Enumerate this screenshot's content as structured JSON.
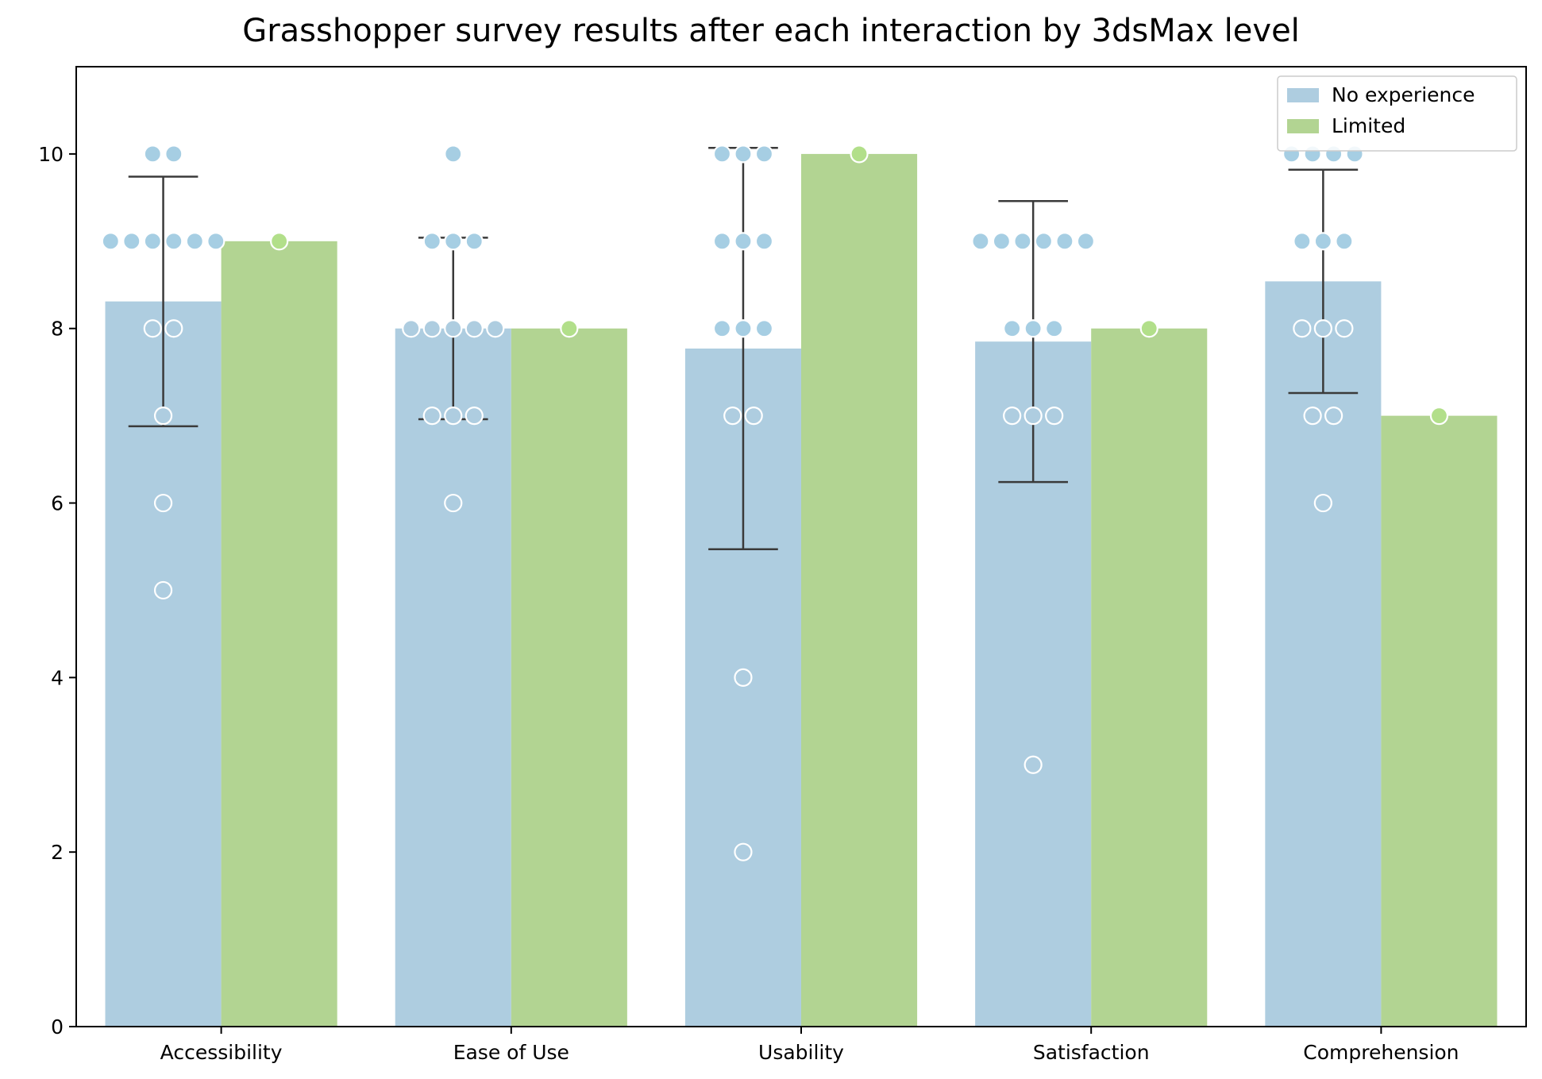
{
  "chart_data": {
    "type": "bar",
    "title": "Grasshopper survey results after each interaction by 3dsMax level",
    "xlabel": "",
    "ylabel": "",
    "ylim": [
      0,
      11
    ],
    "yticks": [
      0,
      2,
      4,
      6,
      8,
      10
    ],
    "categories": [
      "Accessibility",
      "Ease of Use",
      "Usability",
      "Satisfaction",
      "Comprehension"
    ],
    "legend_position": "top-right",
    "grid": false,
    "series": [
      {
        "name": "No experience",
        "color": "#aecde0",
        "point_color": "#a6cee3",
        "values": [
          8.31,
          8.0,
          7.77,
          7.85,
          8.54
        ],
        "error_low": [
          6.88,
          6.96,
          5.47,
          6.24,
          7.26
        ],
        "error_high": [
          9.74,
          9.04,
          10.07,
          9.46,
          9.82
        ],
        "points": [
          [
            10,
            10,
            9,
            9,
            9,
            9,
            9,
            9,
            8,
            8,
            7,
            6,
            5
          ],
          [
            10,
            9,
            9,
            9,
            8,
            8,
            8,
            8,
            8,
            7,
            7,
            7,
            6
          ],
          [
            10,
            10,
            10,
            9,
            9,
            9,
            8,
            8,
            8,
            7,
            7,
            4,
            2
          ],
          [
            9,
            9,
            9,
            9,
            9,
            9,
            8,
            8,
            8,
            7,
            7,
            7,
            3
          ],
          [
            10,
            10,
            10,
            10,
            9,
            9,
            9,
            8,
            8,
            8,
            7,
            7,
            6
          ]
        ]
      },
      {
        "name": "Limited",
        "color": "#b2d492",
        "point_color": "#b2df8a",
        "values": [
          9,
          8,
          10,
          8,
          7
        ],
        "points": [
          [
            9
          ],
          [
            8
          ],
          [
            10
          ],
          [
            8
          ],
          [
            7
          ]
        ]
      }
    ]
  }
}
